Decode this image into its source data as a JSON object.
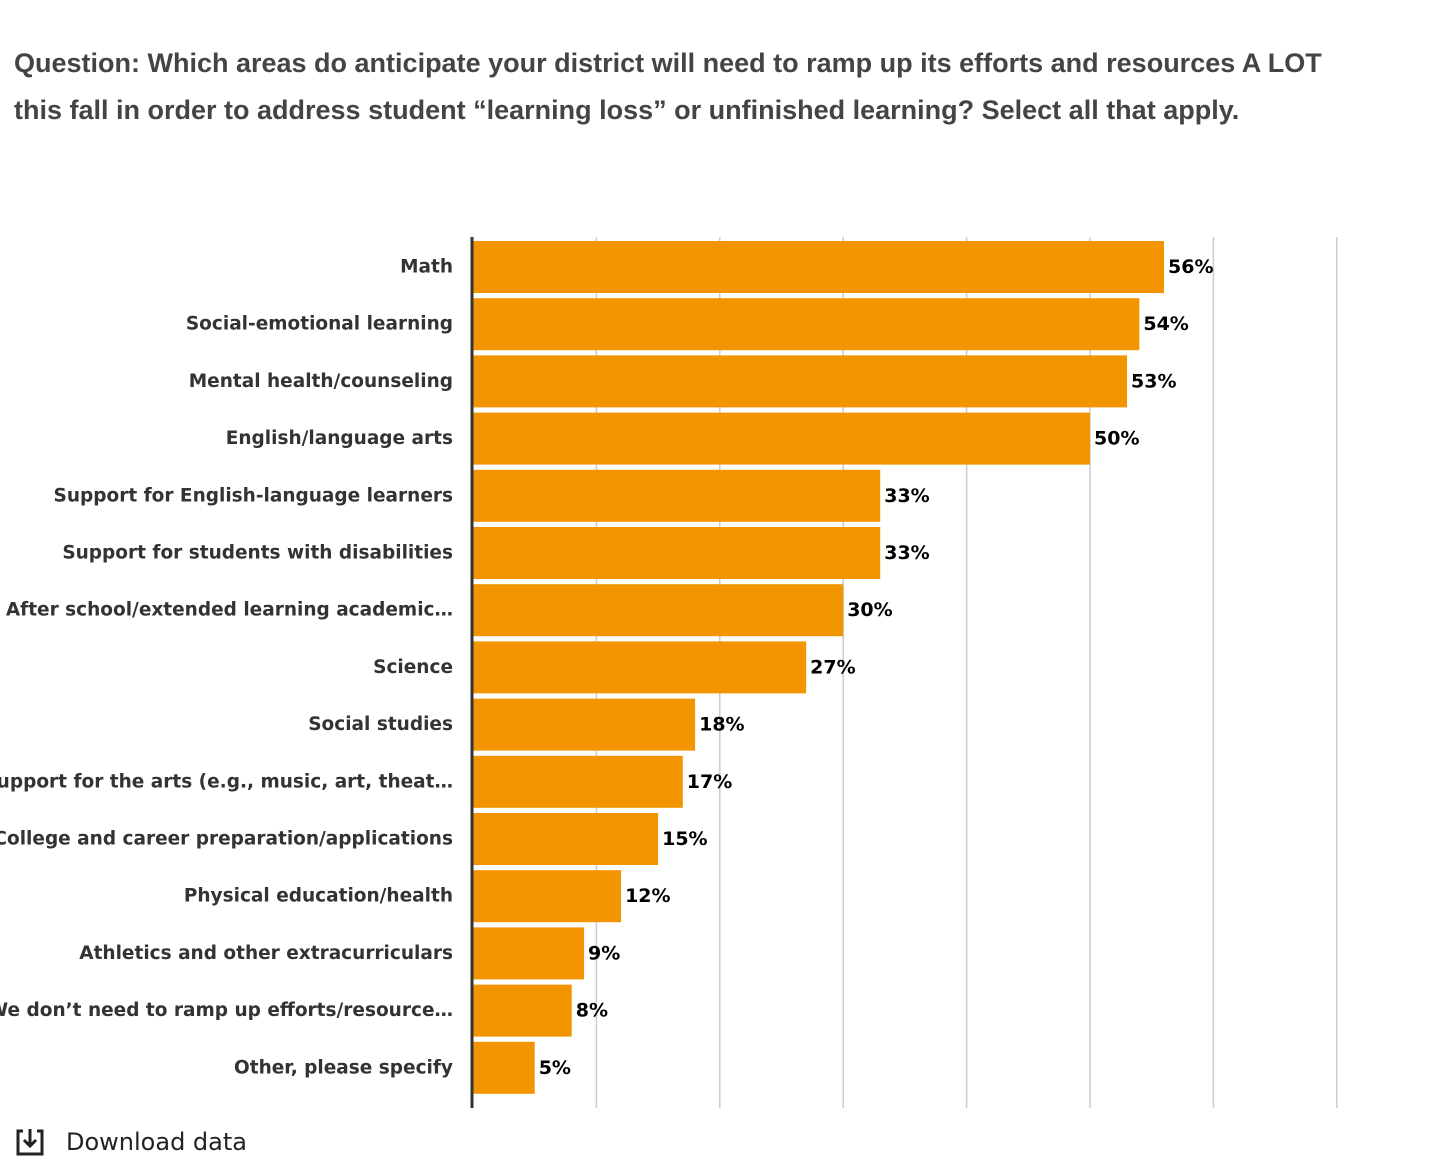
{
  "question": "Question: Which areas do anticipate your district will need to ramp up its efforts and resources A LOT this fall in order to address student “learning loss” or unfinished learning? Select all that apply.",
  "download": {
    "label": "Download data",
    "icon": "download-icon"
  },
  "colors": {
    "bar": "#F29500",
    "grid": "#CCCCCC",
    "axis": "#333333"
  },
  "chart_data": {
    "type": "bar",
    "orientation": "horizontal",
    "title": "",
    "xlabel": "",
    "ylabel": "",
    "xlim": [
      0,
      70
    ],
    "grid": true,
    "legend": "none",
    "categories": [
      "Math",
      "Social-emotional learning",
      "Mental health/counseling",
      "English/language arts",
      "Support for English-language learners",
      "Support for students with disabilities",
      "After school/extended learning academic…",
      "Science",
      "Social studies",
      "Support for the arts (e.g., music, art, theat…",
      "College and career preparation/applications",
      "Physical education/health",
      "Athletics and other extracurriculars",
      "We don’t need to ramp up efforts/resource…",
      "Other, please specify"
    ],
    "values": [
      56,
      54,
      53,
      50,
      33,
      33,
      30,
      27,
      18,
      17,
      15,
      12,
      9,
      8,
      5
    ],
    "value_labels": [
      "56%",
      "54%",
      "53%",
      "50%",
      "33%",
      "33%",
      "30%",
      "27%",
      "18%",
      "17%",
      "15%",
      "12%",
      "9%",
      "8%",
      "5%"
    ]
  }
}
